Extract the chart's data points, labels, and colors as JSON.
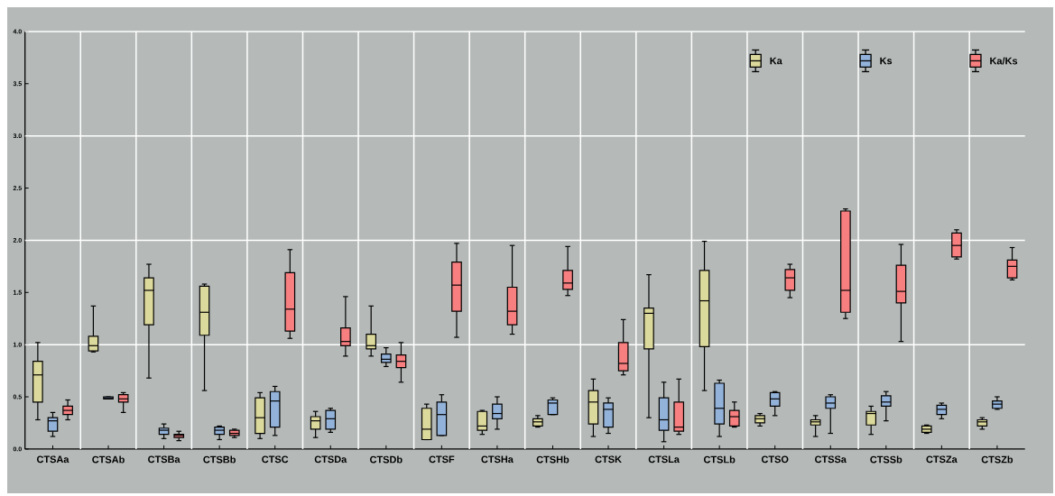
{
  "chart_data": {
    "type": "box",
    "categories": [
      "CTSAa",
      "CTSAb",
      "CTSBa",
      "CTSBb",
      "CTSC",
      "CTSDa",
      "CTSDb",
      "CTSF",
      "CTSHa",
      "CTSHb",
      "CTSK",
      "CTSLa",
      "CTSLb",
      "CTSO",
      "CTSSa",
      "CTSSb",
      "CTSZa",
      "CTSZb"
    ],
    "ylim": [
      0,
      4
    ],
    "yticks": [
      {
        "value": 0,
        "label": "0.0"
      },
      0.5,
      {
        "value": 1,
        "label": "1.0"
      },
      1.5,
      {
        "value": 2,
        "label": "2.0"
      },
      2.5,
      {
        "value": 3,
        "label": "3.0"
      },
      3.5,
      {
        "value": 4,
        "label": "4.0"
      }
    ],
    "grid": true,
    "legend": "top right",
    "series": [
      {
        "name": "Ka",
        "color": "#dcd99c",
        "boxes": [
          {
            "low": 0.28,
            "q1": 0.45,
            "median": 0.71,
            "q3": 0.84,
            "high": 1.02
          },
          {
            "low": 0.93,
            "q1": 0.94,
            "median": 0.99,
            "q3": 1.08,
            "high": 1.37
          },
          {
            "low": 0.68,
            "q1": 1.19,
            "median": 1.52,
            "q3": 1.64,
            "high": 1.77
          },
          {
            "low": 0.56,
            "q1": 1.09,
            "median": 1.31,
            "q3": 1.56,
            "high": 1.58
          },
          {
            "low": 0.1,
            "q1": 0.15,
            "median": 0.3,
            "q3": 0.49,
            "high": 0.54
          },
          {
            "low": 0.11,
            "q1": 0.19,
            "median": 0.27,
            "q3": 0.31,
            "high": 0.36
          },
          {
            "low": 0.89,
            "q1": 0.96,
            "median": 0.99,
            "q3": 1.1,
            "high": 1.37
          },
          {
            "low": 0.09,
            "q1": 0.09,
            "median": 0.19,
            "q3": 0.39,
            "high": 0.43
          },
          {
            "low": 0.14,
            "q1": 0.18,
            "median": 0.22,
            "q3": 0.36,
            "high": 0.37
          },
          {
            "low": 0.21,
            "q1": 0.22,
            "median": 0.26,
            "q3": 0.29,
            "high": 0.32
          },
          {
            "low": 0.12,
            "q1": 0.24,
            "median": 0.45,
            "q3": 0.56,
            "high": 0.67
          },
          {
            "low": 0.3,
            "q1": 0.96,
            "median": 1.3,
            "q3": 1.35,
            "high": 1.67
          },
          {
            "low": 0.56,
            "q1": 0.98,
            "median": 1.42,
            "q3": 1.71,
            "high": 1.99
          },
          {
            "low": 0.22,
            "q1": 0.25,
            "median": 0.29,
            "q3": 0.32,
            "high": 0.34
          },
          {
            "low": 0.12,
            "q1": 0.23,
            "median": 0.26,
            "q3": 0.28,
            "high": 0.32
          },
          {
            "low": 0.14,
            "q1": 0.23,
            "median": 0.34,
            "q3": 0.36,
            "high": 0.41
          },
          {
            "low": 0.15,
            "q1": 0.16,
            "median": 0.19,
            "q3": 0.22,
            "high": 0.23
          },
          {
            "low": 0.19,
            "q1": 0.22,
            "median": 0.26,
            "q3": 0.28,
            "high": 0.3
          }
        ]
      },
      {
        "name": "Ks",
        "color": "#92b2da",
        "boxes": [
          {
            "low": 0.12,
            "q1": 0.17,
            "median": 0.27,
            "q3": 0.3,
            "high": 0.35
          },
          {
            "low": 0.48,
            "q1": 0.48,
            "median": 0.49,
            "q3": 0.5,
            "high": 0.5
          },
          {
            "low": 0.1,
            "q1": 0.14,
            "median": 0.18,
            "q3": 0.2,
            "high": 0.24
          },
          {
            "low": 0.09,
            "q1": 0.14,
            "median": 0.18,
            "q3": 0.21,
            "high": 0.22
          },
          {
            "low": 0.13,
            "q1": 0.21,
            "median": 0.46,
            "q3": 0.55,
            "high": 0.6
          },
          {
            "low": 0.16,
            "q1": 0.19,
            "median": 0.29,
            "q3": 0.37,
            "high": 0.39
          },
          {
            "low": 0.79,
            "q1": 0.83,
            "median": 0.86,
            "q3": 0.91,
            "high": 0.97
          },
          {
            "low": 0.13,
            "q1": 0.13,
            "median": 0.33,
            "q3": 0.45,
            "high": 0.52
          },
          {
            "low": 0.19,
            "q1": 0.29,
            "median": 0.34,
            "q3": 0.43,
            "high": 0.5
          },
          {
            "low": 0.33,
            "q1": 0.33,
            "median": 0.44,
            "q3": 0.47,
            "high": 0.49
          },
          {
            "low": 0.15,
            "q1": 0.21,
            "median": 0.38,
            "q3": 0.44,
            "high": 0.49
          },
          {
            "low": 0.07,
            "q1": 0.18,
            "median": 0.28,
            "q3": 0.49,
            "high": 0.64
          },
          {
            "low": 0.12,
            "q1": 0.24,
            "median": 0.39,
            "q3": 0.63,
            "high": 0.66
          },
          {
            "low": 0.32,
            "q1": 0.41,
            "median": 0.48,
            "q3": 0.54,
            "high": 0.55
          },
          {
            "low": 0.15,
            "q1": 0.39,
            "median": 0.44,
            "q3": 0.5,
            "high": 0.52
          },
          {
            "low": 0.27,
            "q1": 0.41,
            "median": 0.45,
            "q3": 0.51,
            "high": 0.55
          },
          {
            "low": 0.29,
            "q1": 0.33,
            "median": 0.38,
            "q3": 0.42,
            "high": 0.44
          },
          {
            "low": 0.38,
            "q1": 0.39,
            "median": 0.43,
            "q3": 0.46,
            "high": 0.5
          }
        ]
      },
      {
        "name": "Ka/Ks",
        "color": "#f87f80",
        "boxes": [
          {
            "low": 0.28,
            "q1": 0.33,
            "median": 0.37,
            "q3": 0.41,
            "high": 0.47
          },
          {
            "low": 0.35,
            "q1": 0.45,
            "median": 0.48,
            "q3": 0.52,
            "high": 0.54
          },
          {
            "low": 0.08,
            "q1": 0.11,
            "median": 0.13,
            "q3": 0.14,
            "high": 0.17
          },
          {
            "low": 0.11,
            "q1": 0.13,
            "median": 0.15,
            "q3": 0.18,
            "high": 0.19
          },
          {
            "low": 1.06,
            "q1": 1.13,
            "median": 1.34,
            "q3": 1.69,
            "high": 1.91
          },
          {
            "low": 0.89,
            "q1": 0.99,
            "median": 1.03,
            "q3": 1.16,
            "high": 1.46
          },
          {
            "low": 0.64,
            "q1": 0.78,
            "median": 0.84,
            "q3": 0.9,
            "high": 1.02
          },
          {
            "low": 1.07,
            "q1": 1.32,
            "median": 1.57,
            "q3": 1.79,
            "high": 1.97
          },
          {
            "low": 1.1,
            "q1": 1.19,
            "median": 1.32,
            "q3": 1.55,
            "high": 1.95
          },
          {
            "low": 1.47,
            "q1": 1.53,
            "median": 1.59,
            "q3": 1.71,
            "high": 1.94
          },
          {
            "low": 0.71,
            "q1": 0.75,
            "median": 0.82,
            "q3": 1.02,
            "high": 1.24
          },
          {
            "low": 0.14,
            "q1": 0.17,
            "median": 0.21,
            "q3": 0.45,
            "high": 0.67
          },
          {
            "low": 0.21,
            "q1": 0.22,
            "median": 0.31,
            "q3": 0.37,
            "high": 0.45
          },
          {
            "low": 1.45,
            "q1": 1.52,
            "median": 1.64,
            "q3": 1.72,
            "high": 1.77
          },
          {
            "low": 1.25,
            "q1": 1.31,
            "median": 1.52,
            "q3": 2.28,
            "high": 2.3
          },
          {
            "low": 1.03,
            "q1": 1.4,
            "median": 1.51,
            "q3": 1.76,
            "high": 1.96
          },
          {
            "low": 1.82,
            "q1": 1.84,
            "median": 1.95,
            "q3": 2.07,
            "high": 2.1
          },
          {
            "low": 1.62,
            "q1": 1.64,
            "median": 1.75,
            "q3": 1.81,
            "high": 1.93
          }
        ]
      }
    ]
  }
}
